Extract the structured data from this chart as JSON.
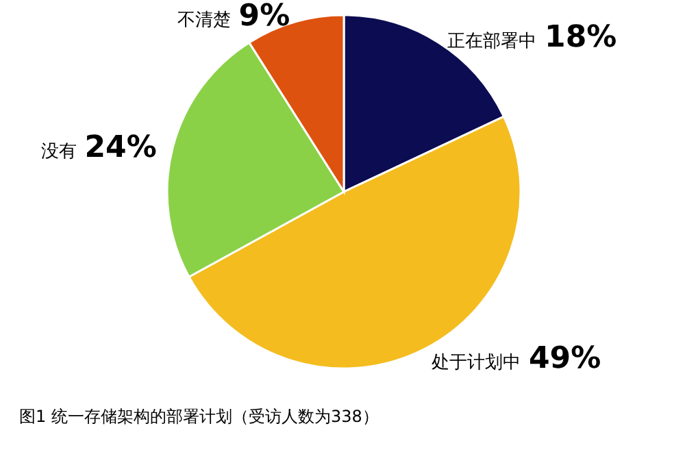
{
  "chart_data": {
    "type": "pie",
    "title": "图1 统一存储架构的部署计划（受访人数为338）",
    "categories": [
      "正在部署中",
      "处于计划中",
      "没有",
      "不清楚"
    ],
    "values": [
      18,
      49,
      24,
      9
    ],
    "value_labels": [
      "18%",
      "49%",
      "24%",
      "9%"
    ],
    "colors": [
      "#0c0c52",
      "#f4bc1f",
      "#8bd148",
      "#de520f"
    ],
    "legend": false
  }
}
